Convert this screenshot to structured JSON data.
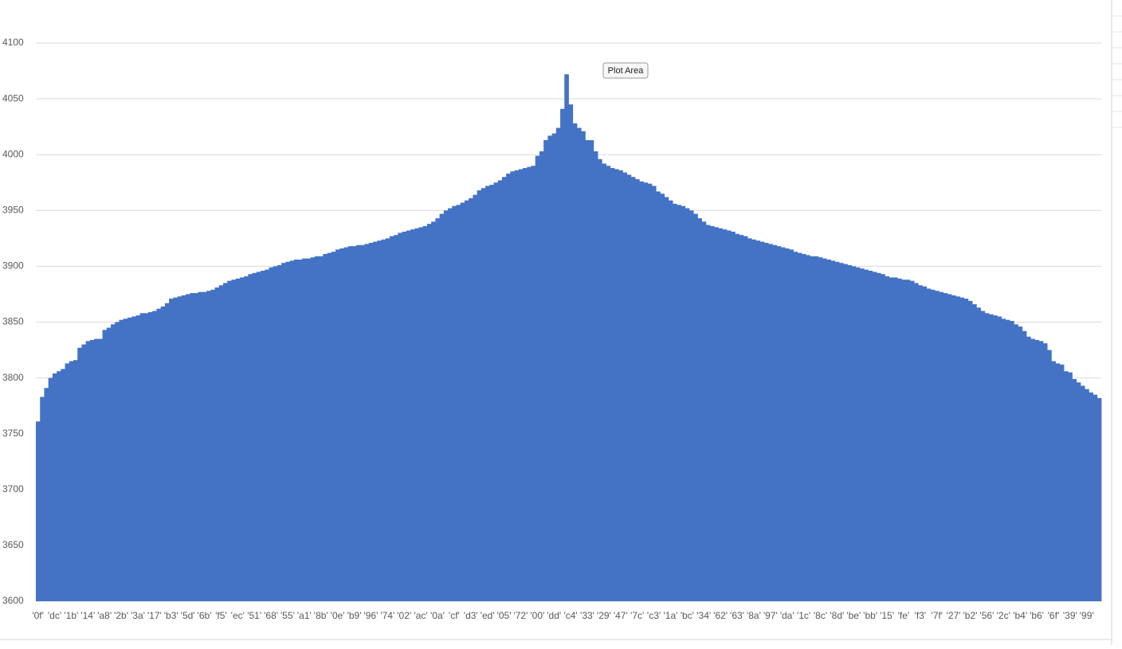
{
  "chart_data": {
    "type": "bar",
    "color": "#4472c4",
    "grid": true,
    "annotation": "Plot Area",
    "ylim": [
      3600,
      4100
    ],
    "yticks": [
      3600,
      3650,
      3700,
      3750,
      3800,
      3850,
      3900,
      3950,
      4000,
      4050,
      4100
    ],
    "categories": [
      "'0f'",
      null,
      null,
      null,
      "'dc'",
      null,
      null,
      null,
      "'1b'",
      null,
      null,
      null,
      "'14'",
      null,
      null,
      null,
      "'a8'",
      null,
      null,
      null,
      "'2b'",
      null,
      null,
      null,
      "'3a'",
      null,
      null,
      null,
      "'17'",
      null,
      null,
      null,
      "'b3'",
      null,
      null,
      null,
      "'5d'",
      null,
      null,
      null,
      "'6b'",
      null,
      null,
      null,
      "'f5'",
      null,
      null,
      null,
      "'ec'",
      null,
      null,
      null,
      "'51'",
      null,
      null,
      null,
      "'68'",
      null,
      null,
      null,
      "'55'",
      null,
      null,
      null,
      "'a1'",
      null,
      null,
      null,
      "'8b'",
      null,
      null,
      null,
      "'0e'",
      null,
      null,
      null,
      "'b9'",
      null,
      null,
      null,
      "'96'",
      null,
      null,
      null,
      "'74'",
      null,
      null,
      null,
      "'02'",
      null,
      null,
      null,
      "'ac'",
      null,
      null,
      null,
      "'0a'",
      null,
      null,
      null,
      "'cf'",
      null,
      null,
      null,
      "'d3'",
      null,
      null,
      null,
      "'ed'",
      null,
      null,
      null,
      "'05'",
      null,
      null,
      null,
      "'72'",
      null,
      null,
      null,
      "'00'",
      null,
      null,
      null,
      "'dd'",
      null,
      null,
      null,
      "'c4'",
      null,
      null,
      null,
      "'33'",
      null,
      null,
      null,
      "'29'",
      null,
      null,
      null,
      "'47'",
      null,
      null,
      null,
      "'7c'",
      null,
      null,
      null,
      "'c3'",
      null,
      null,
      null,
      "'1a'",
      null,
      null,
      null,
      "'bc'",
      null,
      null,
      null,
      "'34'",
      null,
      null,
      null,
      "'62'",
      null,
      null,
      null,
      "'63'",
      null,
      null,
      null,
      "'8a'",
      null,
      null,
      null,
      "'97'",
      null,
      null,
      null,
      "'da'",
      null,
      null,
      null,
      "'1c'",
      null,
      null,
      null,
      "'8c'",
      null,
      null,
      null,
      "'8d'",
      null,
      null,
      null,
      "'be'",
      null,
      null,
      null,
      "'bb'",
      null,
      null,
      null,
      "'15'",
      null,
      null,
      null,
      "'fe'",
      null,
      null,
      null,
      "'f3'",
      null,
      null,
      null,
      "'7f'",
      null,
      null,
      null,
      "'27'",
      null,
      null,
      null,
      "'b2'",
      null,
      null,
      null,
      "'56'",
      null,
      null,
      null,
      "'2c'",
      null,
      null,
      null,
      "'b4'",
      null,
      null,
      null,
      "'b6'",
      null,
      null,
      null,
      "'6f'",
      null,
      null,
      null,
      "'39'",
      null,
      null,
      null,
      "'99'",
      null,
      null,
      null
    ],
    "values": [
      3761,
      3783,
      3791,
      3800,
      3804,
      3806,
      3808,
      3813,
      3815,
      3816,
      3827,
      3830,
      3833,
      3834,
      3835,
      3835,
      3843,
      3845,
      3848,
      3850,
      3852,
      3853,
      3854,
      3855,
      3856,
      3858,
      3858,
      3859,
      3860,
      3862,
      3864,
      3867,
      3871,
      3872,
      3873,
      3874,
      3875,
      3876,
      3876,
      3877,
      3877,
      3878,
      3879,
      3881,
      3883,
      3885,
      3887,
      3888,
      3889,
      3890,
      3891,
      3893,
      3894,
      3895,
      3896,
      3897,
      3899,
      3900,
      3901,
      3903,
      3904,
      3905,
      3906,
      3906,
      3907,
      3907,
      3908,
      3909,
      3909,
      3911,
      3912,
      3913,
      3915,
      3916,
      3917,
      3918,
      3918,
      3919,
      3919,
      3920,
      3921,
      3922,
      3923,
      3924,
      3925,
      3927,
      3928,
      3930,
      3931,
      3932,
      3933,
      3934,
      3935,
      3936,
      3938,
      3940,
      3943,
      3947,
      3950,
      3952,
      3954,
      3955,
      3957,
      3959,
      3961,
      3964,
      3968,
      3970,
      3972,
      3973,
      3975,
      3977,
      3980,
      3983,
      3985,
      3986,
      3987,
      3988,
      3989,
      3990,
      3999,
      4003,
      4013,
      4017,
      4019,
      4024,
      4041,
      4072,
      4045,
      4028,
      4024,
      4021,
      4013,
      4013,
      4003,
      3996,
      3992,
      3990,
      3988,
      3987,
      3986,
      3984,
      3982,
      3980,
      3978,
      3976,
      3975,
      3974,
      3972,
      3967,
      3965,
      3962,
      3959,
      3956,
      3955,
      3954,
      3952,
      3950,
      3947,
      3943,
      3940,
      3937,
      3936,
      3935,
      3934,
      3933,
      3932,
      3931,
      3929,
      3928,
      3927,
      3925,
      3924,
      3923,
      3922,
      3921,
      3920,
      3919,
      3918,
      3917,
      3916,
      3915,
      3913,
      3912,
      3911,
      3910,
      3909,
      3909,
      3908,
      3907,
      3906,
      3905,
      3904,
      3903,
      3902,
      3901,
      3900,
      3899,
      3898,
      3897,
      3896,
      3895,
      3894,
      3893,
      3891,
      3890,
      3890,
      3889,
      3888,
      3888,
      3887,
      3885,
      3883,
      3882,
      3880,
      3879,
      3878,
      3877,
      3876,
      3875,
      3874,
      3873,
      3872,
      3871,
      3869,
      3866,
      3863,
      3860,
      3858,
      3857,
      3856,
      3855,
      3853,
      3852,
      3851,
      3848,
      3846,
      3842,
      3837,
      3835,
      3834,
      3833,
      3831,
      3825,
      3815,
      3813,
      3812,
      3806,
      3805,
      3799,
      3796,
      3793,
      3790,
      3787,
      3785,
      3782
    ]
  }
}
